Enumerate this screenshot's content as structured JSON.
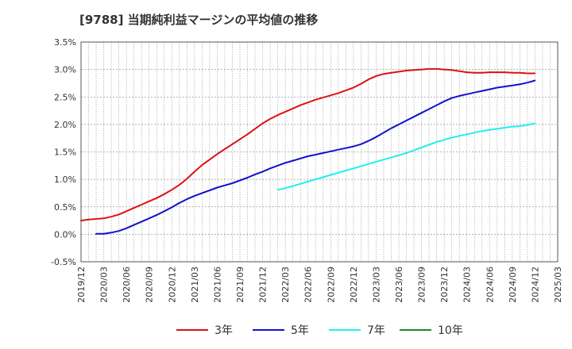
{
  "title": "[9788]  当期純利益マージンの平均値の推移",
  "chart_data": {
    "type": "line",
    "title": "[9788]  当期純利益マージンの平均値の推移",
    "xlabel": "",
    "ylabel": "",
    "x_ticks": [
      "2019/12",
      "2020/03",
      "2020/06",
      "2020/09",
      "2020/12",
      "2021/03",
      "2021/06",
      "2021/09",
      "2021/12",
      "2022/03",
      "2022/06",
      "2022/09",
      "2022/12",
      "2023/03",
      "2023/06",
      "2023/09",
      "2023/12",
      "2024/03",
      "2024/06",
      "2024/09",
      "2024/12",
      "2025/03"
    ],
    "y_ticks": [
      "-0.5%",
      "0.0%",
      "0.5%",
      "1.0%",
      "1.5%",
      "2.0%",
      "2.5%",
      "3.0%",
      "3.5%"
    ],
    "y_tick_values": [
      -0.5,
      0.0,
      0.5,
      1.0,
      1.5,
      2.0,
      2.5,
      3.0,
      3.5
    ],
    "ylim": [
      -0.5,
      3.5
    ],
    "y_unit": "%",
    "grid": true,
    "legend_position": "bottom",
    "series": [
      {
        "name": "3年",
        "color": "#dd1111",
        "values": [
          [
            "2019/12",
            0.25
          ],
          [
            "2020/01",
            0.27
          ],
          [
            "2020/02",
            0.28
          ],
          [
            "2020/03",
            0.29
          ],
          [
            "2020/04",
            0.32
          ],
          [
            "2020/05",
            0.36
          ],
          [
            "2020/06",
            0.42
          ],
          [
            "2020/07",
            0.48
          ],
          [
            "2020/08",
            0.54
          ],
          [
            "2020/09",
            0.6
          ],
          [
            "2020/10",
            0.66
          ],
          [
            "2020/11",
            0.73
          ],
          [
            "2020/12",
            0.81
          ],
          [
            "2021/01",
            0.9
          ],
          [
            "2021/02",
            1.01
          ],
          [
            "2021/03",
            1.14
          ],
          [
            "2021/04",
            1.26
          ],
          [
            "2021/05",
            1.36
          ],
          [
            "2021/06",
            1.46
          ],
          [
            "2021/07",
            1.55
          ],
          [
            "2021/08",
            1.64
          ],
          [
            "2021/09",
            1.73
          ],
          [
            "2021/10",
            1.82
          ],
          [
            "2021/11",
            1.92
          ],
          [
            "2021/12",
            2.02
          ],
          [
            "2022/01",
            2.1
          ],
          [
            "2022/02",
            2.17
          ],
          [
            "2022/03",
            2.23
          ],
          [
            "2022/04",
            2.29
          ],
          [
            "2022/05",
            2.35
          ],
          [
            "2022/06",
            2.4
          ],
          [
            "2022/07",
            2.45
          ],
          [
            "2022/08",
            2.49
          ],
          [
            "2022/09",
            2.53
          ],
          [
            "2022/10",
            2.57
          ],
          [
            "2022/11",
            2.62
          ],
          [
            "2022/12",
            2.67
          ],
          [
            "2023/01",
            2.74
          ],
          [
            "2023/02",
            2.82
          ],
          [
            "2023/03",
            2.88
          ],
          [
            "2023/04",
            2.92
          ],
          [
            "2023/05",
            2.94
          ],
          [
            "2023/06",
            2.96
          ],
          [
            "2023/07",
            2.98
          ],
          [
            "2023/08",
            2.99
          ],
          [
            "2023/09",
            3.0
          ],
          [
            "2023/10",
            3.01
          ],
          [
            "2023/11",
            3.01
          ],
          [
            "2023/12",
            3.0
          ],
          [
            "2024/01",
            2.99
          ],
          [
            "2024/02",
            2.97
          ],
          [
            "2024/03",
            2.95
          ],
          [
            "2024/04",
            2.94
          ],
          [
            "2024/05",
            2.94
          ],
          [
            "2024/06",
            2.95
          ],
          [
            "2024/07",
            2.95
          ],
          [
            "2024/08",
            2.95
          ],
          [
            "2024/09",
            2.94
          ],
          [
            "2024/10",
            2.94
          ],
          [
            "2024/11",
            2.93
          ],
          [
            "2024/12",
            2.93
          ]
        ]
      },
      {
        "name": "5年",
        "color": "#1111cc",
        "values": [
          [
            "2020/02",
            0.01
          ],
          [
            "2020/03",
            0.01
          ],
          [
            "2020/04",
            0.03
          ],
          [
            "2020/05",
            0.06
          ],
          [
            "2020/06",
            0.11
          ],
          [
            "2020/07",
            0.17
          ],
          [
            "2020/08",
            0.23
          ],
          [
            "2020/09",
            0.29
          ],
          [
            "2020/10",
            0.35
          ],
          [
            "2020/11",
            0.42
          ],
          [
            "2020/12",
            0.49
          ],
          [
            "2021/01",
            0.57
          ],
          [
            "2021/02",
            0.64
          ],
          [
            "2021/03",
            0.7
          ],
          [
            "2021/04",
            0.75
          ],
          [
            "2021/05",
            0.8
          ],
          [
            "2021/06",
            0.85
          ],
          [
            "2021/07",
            0.89
          ],
          [
            "2021/08",
            0.93
          ],
          [
            "2021/09",
            0.98
          ],
          [
            "2021/10",
            1.03
          ],
          [
            "2021/11",
            1.09
          ],
          [
            "2021/12",
            1.14
          ],
          [
            "2022/01",
            1.2
          ],
          [
            "2022/02",
            1.25
          ],
          [
            "2022/03",
            1.3
          ],
          [
            "2022/04",
            1.34
          ],
          [
            "2022/05",
            1.38
          ],
          [
            "2022/06",
            1.42
          ],
          [
            "2022/07",
            1.45
          ],
          [
            "2022/08",
            1.48
          ],
          [
            "2022/09",
            1.51
          ],
          [
            "2022/10",
            1.54
          ],
          [
            "2022/11",
            1.57
          ],
          [
            "2022/12",
            1.6
          ],
          [
            "2023/01",
            1.64
          ],
          [
            "2023/02",
            1.7
          ],
          [
            "2023/03",
            1.77
          ],
          [
            "2023/04",
            1.85
          ],
          [
            "2023/05",
            1.93
          ],
          [
            "2023/06",
            2.0
          ],
          [
            "2023/07",
            2.07
          ],
          [
            "2023/08",
            2.14
          ],
          [
            "2023/09",
            2.21
          ],
          [
            "2023/10",
            2.28
          ],
          [
            "2023/11",
            2.35
          ],
          [
            "2023/12",
            2.42
          ],
          [
            "2024/01",
            2.48
          ],
          [
            "2024/02",
            2.52
          ],
          [
            "2024/03",
            2.55
          ],
          [
            "2024/04",
            2.58
          ],
          [
            "2024/05",
            2.61
          ],
          [
            "2024/06",
            2.64
          ],
          [
            "2024/07",
            2.67
          ],
          [
            "2024/08",
            2.69
          ],
          [
            "2024/09",
            2.71
          ],
          [
            "2024/10",
            2.73
          ],
          [
            "2024/11",
            2.76
          ],
          [
            "2024/12",
            2.8
          ]
        ]
      },
      {
        "name": "7年",
        "color": "#22eeee",
        "values": [
          [
            "2022/02",
            0.81
          ],
          [
            "2022/03",
            0.84
          ],
          [
            "2022/04",
            0.88
          ],
          [
            "2022/05",
            0.92
          ],
          [
            "2022/06",
            0.96
          ],
          [
            "2022/07",
            1.0
          ],
          [
            "2022/08",
            1.04
          ],
          [
            "2022/09",
            1.08
          ],
          [
            "2022/10",
            1.12
          ],
          [
            "2022/11",
            1.16
          ],
          [
            "2022/12",
            1.2
          ],
          [
            "2023/01",
            1.24
          ],
          [
            "2023/02",
            1.28
          ],
          [
            "2023/03",
            1.32
          ],
          [
            "2023/04",
            1.36
          ],
          [
            "2023/05",
            1.4
          ],
          [
            "2023/06",
            1.44
          ],
          [
            "2023/07",
            1.48
          ],
          [
            "2023/08",
            1.53
          ],
          [
            "2023/09",
            1.58
          ],
          [
            "2023/10",
            1.63
          ],
          [
            "2023/11",
            1.68
          ],
          [
            "2023/12",
            1.72
          ],
          [
            "2024/01",
            1.76
          ],
          [
            "2024/02",
            1.79
          ],
          [
            "2024/03",
            1.82
          ],
          [
            "2024/04",
            1.85
          ],
          [
            "2024/05",
            1.88
          ],
          [
            "2024/06",
            1.9
          ],
          [
            "2024/07",
            1.92
          ],
          [
            "2024/08",
            1.94
          ],
          [
            "2024/09",
            1.96
          ],
          [
            "2024/10",
            1.97
          ],
          [
            "2024/11",
            1.99
          ],
          [
            "2024/12",
            2.02
          ]
        ]
      },
      {
        "name": "10年",
        "color": "#228822",
        "values": []
      }
    ]
  }
}
